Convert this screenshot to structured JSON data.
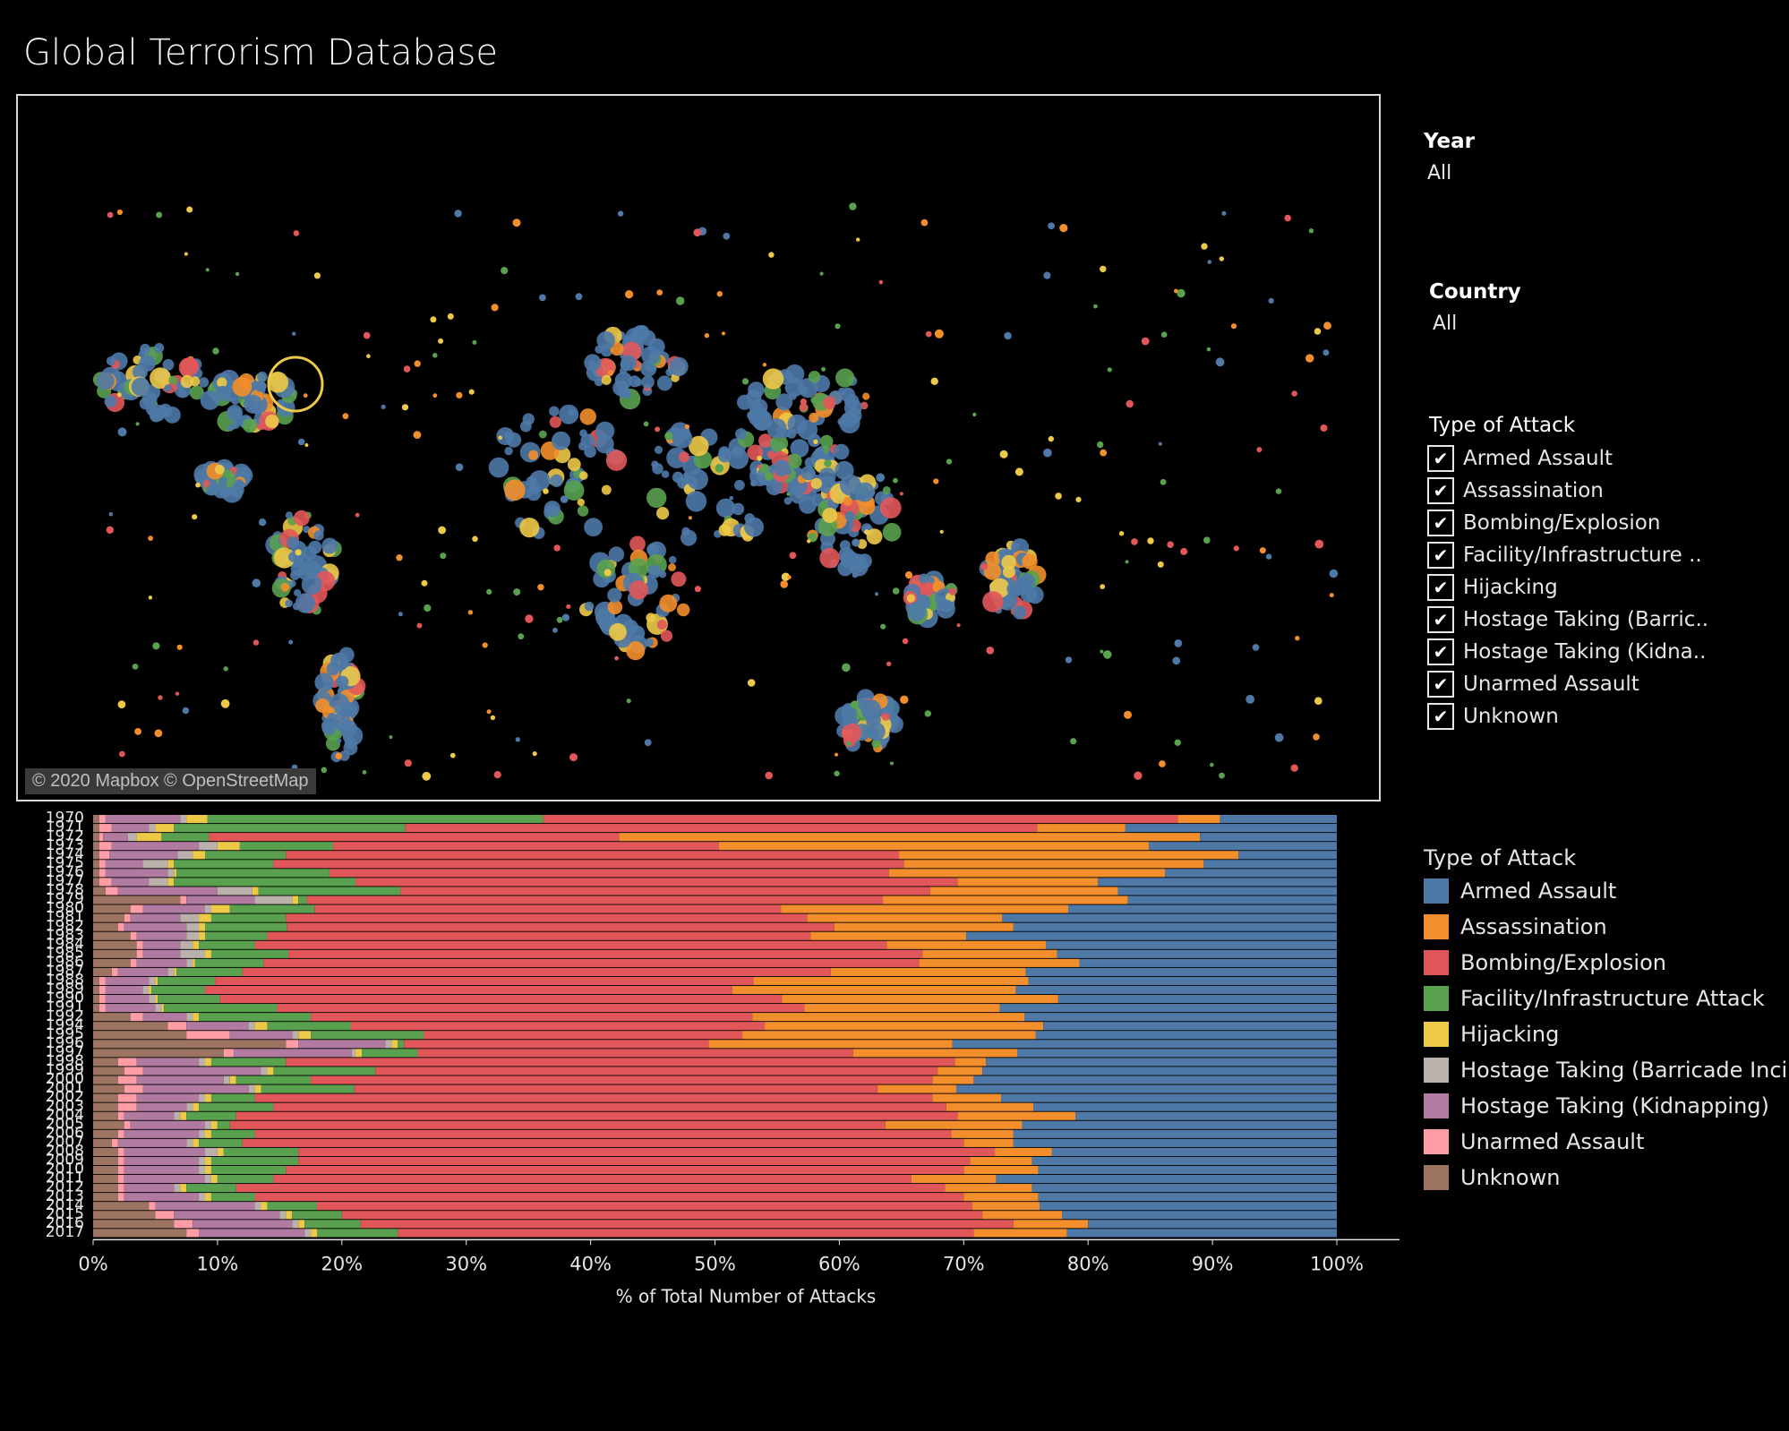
{
  "header": {
    "title": "Global Terrorism Database"
  },
  "map": {
    "attribution": "© 2020 Mapbox © OpenStreetMap"
  },
  "filters": {
    "year": {
      "label": "Year",
      "value": "All"
    },
    "country": {
      "label": "Country",
      "value": "All"
    },
    "attack_filter": {
      "label": "Type of Attack",
      "items": [
        "Armed Assault",
        "Assassination",
        "Bombing/Explosion",
        "Facility/Infrastructure ..",
        "Hijacking",
        "Hostage Taking (Barric..",
        "Hostage Taking (Kidna..",
        "Unarmed Assault",
        "Unknown"
      ]
    }
  },
  "legend": {
    "title": "Type of Attack",
    "items": [
      "Armed Assault",
      "Assassination",
      "Bombing/Explosion",
      "Facility/Infrastructure Attack",
      "Hijacking",
      "Hostage Taking (Barricade Inci..",
      "Hostage Taking (Kidnapping)",
      "Unarmed Assault",
      "Unknown"
    ]
  },
  "colors": {
    "Unknown": "#9c7461",
    "Unarmed Assault": "#ff9da7",
    "Hostage Taking (Kidnapping)": "#b07aa1",
    "Hostage Taking (Barricade Incident)": "#bab0ac",
    "Hijacking": "#edc948",
    "Facility/Infrastructure Attack": "#59a14f",
    "Bombing/Explosion": "#e15759",
    "Assassination": "#f28e2b",
    "Armed Assault": "#4e79a7"
  },
  "chart_data": {
    "type": "bar",
    "orientation": "horizontal-stacked-100",
    "xlabel": "% of Total Number of Attacks",
    "xlim": [
      0,
      100
    ],
    "xticks": [
      "0%",
      "10%",
      "20%",
      "30%",
      "40%",
      "50%",
      "60%",
      "70%",
      "80%",
      "90%",
      "100%"
    ],
    "categories": [
      "1970",
      "1971",
      "1972",
      "1973",
      "1974",
      "1975",
      "1976",
      "1977",
      "1978",
      "1979",
      "1980",
      "1981",
      "1982",
      "1983",
      "1984",
      "1985",
      "1986",
      "1987",
      "1988",
      "1989",
      "1990",
      "1991",
      "1992",
      "1994",
      "1995",
      "1996",
      "1997",
      "1998",
      "1999",
      "2000",
      "2001",
      "2002",
      "2003",
      "2004",
      "2005",
      "2006",
      "2007",
      "2008",
      "2009",
      "2010",
      "2011",
      "2012",
      "2013",
      "2014",
      "2015",
      "2016",
      "2017"
    ],
    "series_order": [
      "Unknown",
      "Unarmed Assault",
      "Hostage Taking (Kidnapping)",
      "Hostage Taking (Barricade Incident)",
      "Hijacking",
      "Facility/Infrastructure Attack",
      "Bombing/Explosion",
      "Assassination",
      "Armed Assault"
    ],
    "values": [
      [
        0.5,
        0.5,
        6.0,
        0.5,
        1.7,
        27.0,
        51.0,
        3.4,
        9.4
      ],
      [
        0.5,
        1.0,
        3.0,
        0.5,
        1.5,
        18.6,
        50.8,
        7.1,
        17.0
      ],
      [
        0.5,
        0.3,
        2.0,
        0.7,
        2.0,
        3.8,
        33.0,
        46.7,
        11.0
      ],
      [
        0.5,
        1.0,
        7.0,
        1.5,
        1.8,
        7.5,
        31.0,
        34.6,
        15.1
      ],
      [
        0.5,
        0.8,
        5.5,
        1.2,
        1.0,
        6.5,
        49.3,
        27.3,
        7.9
      ],
      [
        0.5,
        0.5,
        3.0,
        2.0,
        0.5,
        8.0,
        50.7,
        24.1,
        10.7
      ],
      [
        0.5,
        0.5,
        5.0,
        0.5,
        0.2,
        12.3,
        45.0,
        22.2,
        13.8
      ],
      [
        0.5,
        1.0,
        3.0,
        1.5,
        0.5,
        14.6,
        48.4,
        11.3,
        19.2
      ],
      [
        1.0,
        1.0,
        8.0,
        2.8,
        0.5,
        11.4,
        42.6,
        15.1,
        17.6
      ],
      [
        7.0,
        0.5,
        5.5,
        3.0,
        0.5,
        0.7,
        46.3,
        19.7,
        16.8
      ],
      [
        3.0,
        1.0,
        5.0,
        0.5,
        1.5,
        6.8,
        37.5,
        23.1,
        21.6
      ],
      [
        2.5,
        0.5,
        4.0,
        1.5,
        1.0,
        6.0,
        41.9,
        15.7,
        26.9
      ],
      [
        2.0,
        0.5,
        5.0,
        1.0,
        0.5,
        6.6,
        44.0,
        14.4,
        26.0
      ],
      [
        3.0,
        0.5,
        4.0,
        1.0,
        0.5,
        5.0,
        43.7,
        12.5,
        29.8
      ],
      [
        3.5,
        0.5,
        3.0,
        1.0,
        0.5,
        4.5,
        50.8,
        12.8,
        23.4
      ],
      [
        3.5,
        0.5,
        3.0,
        2.0,
        0.5,
        6.2,
        51.0,
        10.8,
        22.5
      ],
      [
        3.0,
        0.5,
        4.0,
        0.5,
        0.2,
        5.5,
        52.7,
        12.9,
        20.7
      ],
      [
        1.5,
        0.5,
        4.0,
        0.5,
        0.2,
        5.3,
        47.3,
        15.7,
        25.0
      ],
      [
        0.5,
        0.5,
        3.5,
        0.5,
        0.2,
        4.6,
        43.3,
        22.1,
        24.8
      ],
      [
        0.5,
        0.5,
        3.0,
        0.5,
        0.2,
        4.3,
        42.4,
        22.8,
        25.8
      ],
      [
        0.5,
        0.5,
        3.5,
        0.5,
        0.2,
        5.0,
        45.2,
        22.2,
        22.4
      ],
      [
        0.5,
        0.5,
        4.0,
        0.5,
        0.2,
        9.1,
        42.4,
        15.7,
        27.1
      ],
      [
        3.0,
        1.0,
        3.5,
        0.5,
        0.5,
        9.0,
        35.5,
        21.9,
        25.1
      ],
      [
        6.0,
        1.5,
        5.0,
        0.5,
        1.0,
        6.7,
        33.3,
        22.4,
        23.6
      ],
      [
        7.5,
        3.5,
        5.0,
        0.5,
        1.0,
        9.1,
        25.6,
        23.6,
        24.2
      ],
      [
        15.5,
        1.0,
        7.0,
        0.5,
        0.5,
        0.5,
        24.5,
        19.6,
        30.9
      ],
      [
        10.5,
        0.8,
        9.5,
        0.3,
        0.5,
        4.5,
        35.0,
        13.2,
        25.7
      ],
      [
        2.0,
        1.5,
        5.0,
        0.5,
        0.5,
        6.0,
        53.8,
        2.5,
        28.2
      ],
      [
        2.5,
        1.5,
        9.5,
        0.5,
        0.5,
        8.2,
        45.2,
        3.6,
        28.5
      ],
      [
        2.0,
        1.5,
        7.0,
        0.5,
        0.5,
        6.0,
        50.0,
        3.3,
        29.2
      ],
      [
        2.5,
        1.5,
        8.5,
        0.5,
        0.5,
        7.5,
        42.1,
        6.3,
        30.6
      ],
      [
        2.0,
        1.5,
        5.0,
        0.5,
        0.5,
        3.5,
        54.5,
        5.5,
        27.0
      ],
      [
        2.0,
        1.5,
        4.0,
        0.5,
        0.5,
        6.0,
        54.1,
        7.0,
        24.4
      ],
      [
        2.0,
        0.5,
        4.0,
        0.5,
        0.5,
        4.0,
        58.0,
        9.5,
        21.0
      ],
      [
        2.5,
        0.5,
        6.0,
        0.5,
        0.5,
        1.0,
        52.7,
        11.0,
        25.3
      ],
      [
        2.0,
        0.5,
        6.0,
        0.5,
        0.5,
        3.5,
        56.0,
        5.0,
        26.0
      ],
      [
        1.5,
        0.5,
        5.5,
        0.5,
        0.5,
        3.5,
        58.0,
        4.0,
        26.0
      ],
      [
        2.0,
        0.5,
        6.5,
        1.0,
        0.5,
        6.0,
        56.0,
        4.6,
        22.9
      ],
      [
        2.0,
        0.5,
        6.0,
        0.5,
        0.5,
        7.0,
        54.0,
        5.0,
        24.5
      ],
      [
        2.0,
        0.5,
        6.0,
        0.5,
        0.5,
        6.0,
        54.5,
        6.0,
        24.0
      ],
      [
        2.0,
        0.5,
        6.5,
        0.5,
        0.5,
        4.5,
        51.3,
        6.8,
        27.4
      ],
      [
        2.0,
        0.5,
        4.0,
        0.5,
        0.5,
        4.0,
        57.0,
        7.0,
        24.5
      ],
      [
        2.0,
        0.5,
        6.0,
        0.5,
        0.5,
        3.5,
        57.0,
        6.0,
        24.0
      ],
      [
        4.5,
        0.5,
        8.0,
        0.5,
        0.5,
        4.0,
        52.7,
        5.4,
        23.9
      ],
      [
        5.0,
        1.5,
        8.5,
        0.5,
        0.5,
        4.0,
        51.5,
        6.4,
        22.1
      ],
      [
        6.5,
        1.5,
        8.0,
        0.5,
        0.5,
        4.5,
        52.5,
        6.0,
        20.0
      ],
      [
        7.5,
        1.0,
        8.5,
        0.5,
        0.5,
        6.5,
        46.3,
        7.5,
        21.7
      ]
    ]
  }
}
